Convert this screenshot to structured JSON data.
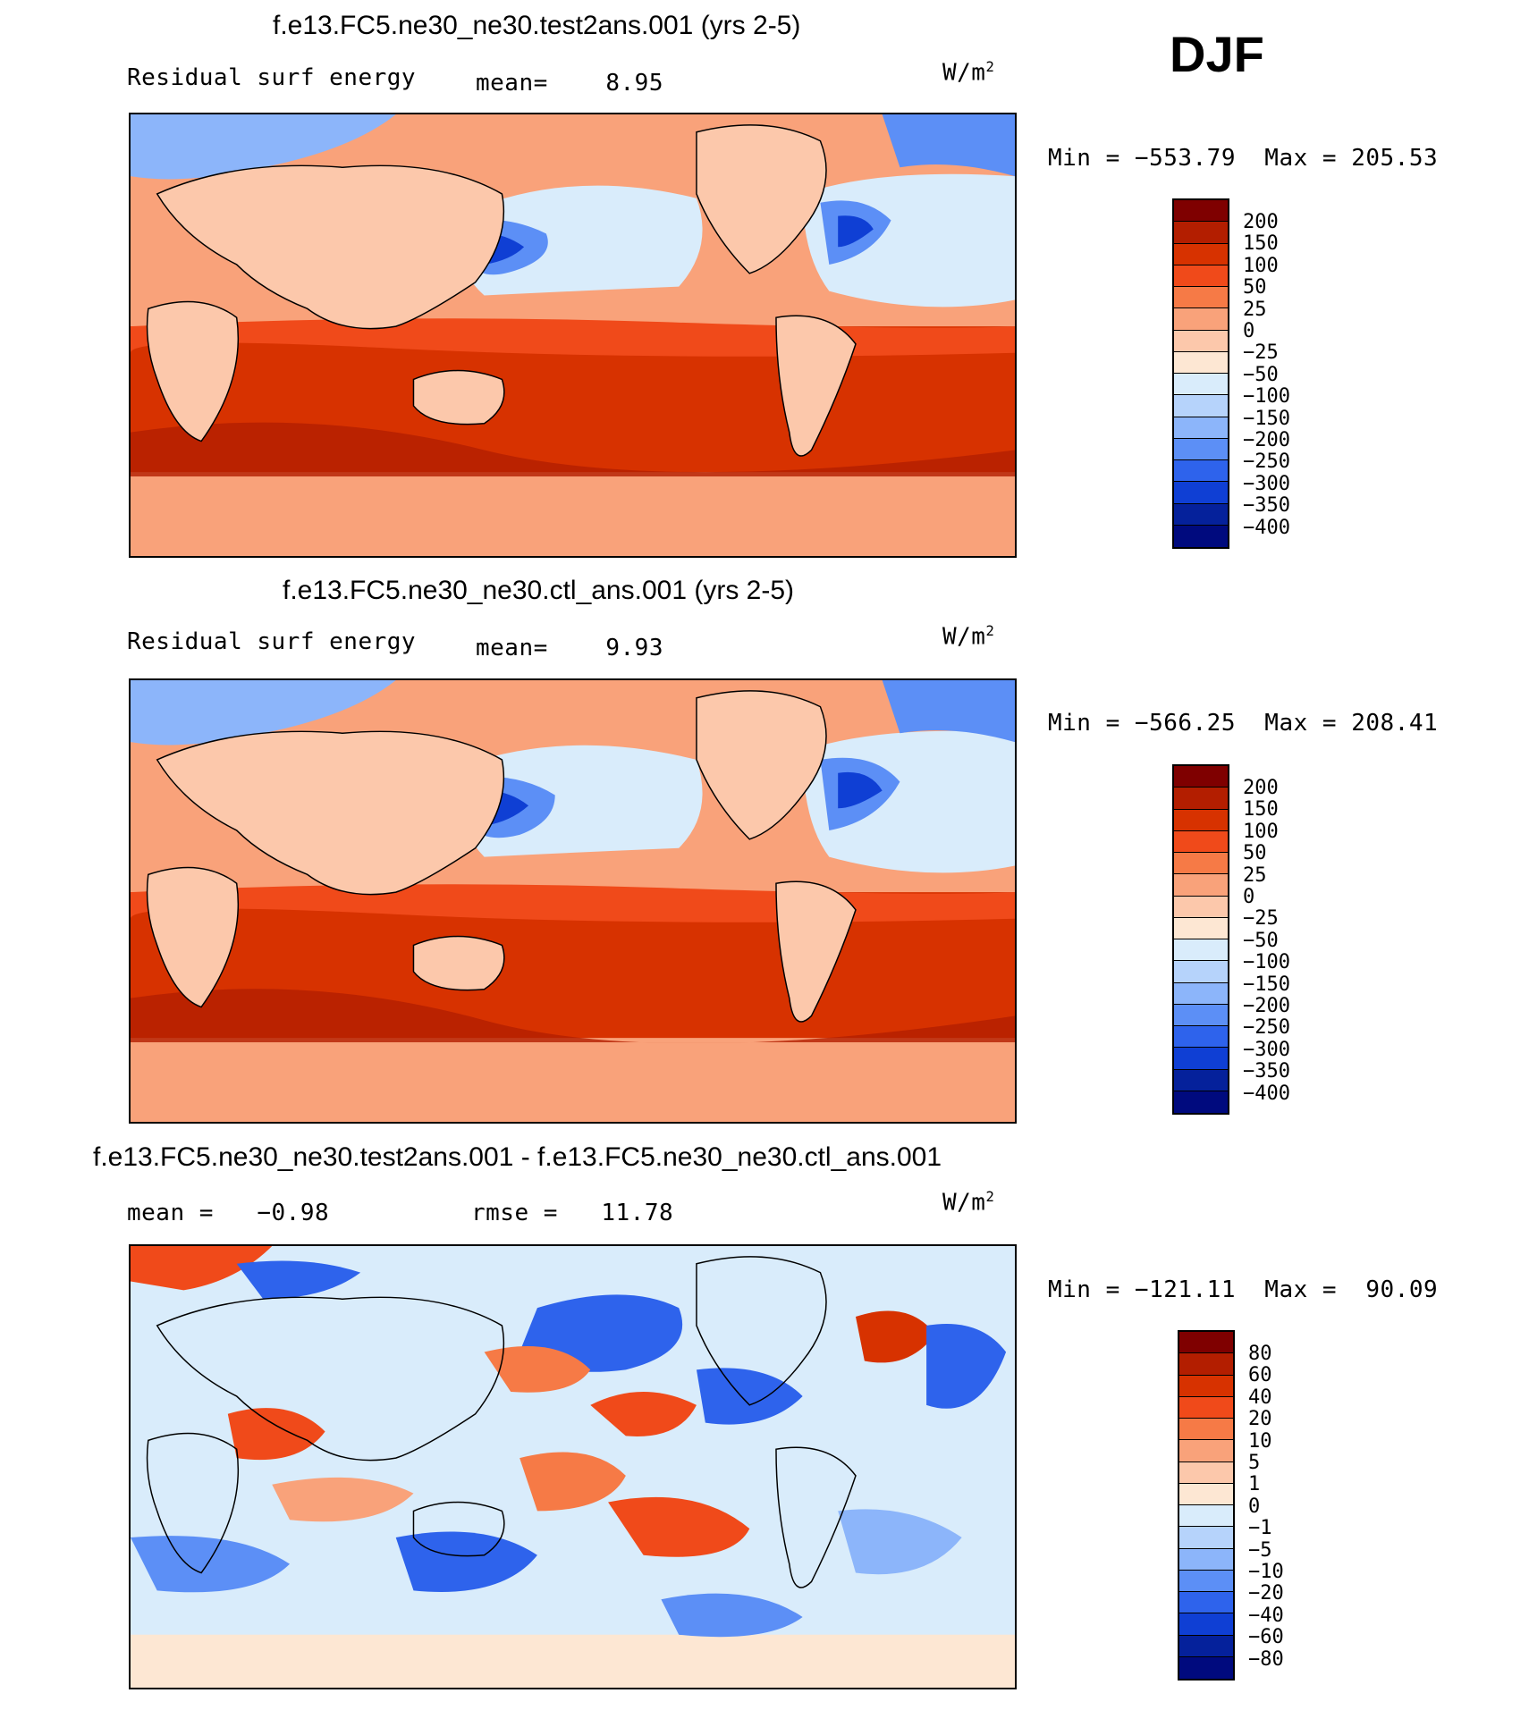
{
  "season": "DJF",
  "panels": [
    {
      "title": "f.e13.FC5.ne30_ne30.test2ans.001 (yrs 2-5)",
      "left_label": "Residual surf energy",
      "center_label": "mean=    8.95",
      "units": "W/m",
      "units_sup": "2",
      "minmax": "Min = −553.79  Max = 205.53",
      "levels": [
        "200",
        "150",
        "100",
        "50",
        "25",
        "0",
        "−25",
        "−50",
        "−100",
        "−150",
        "−200",
        "−250",
        "−300",
        "−350",
        "−400"
      ],
      "colors": [
        "#7f0000",
        "#b31e00",
        "#d73200",
        "#f04a1a",
        "#f67a46",
        "#f9a27a",
        "#fcc8ab",
        "#fde7d3",
        "#d9ecfb",
        "#b6d3fb",
        "#8cb5fa",
        "#5c8ff6",
        "#2e63ec",
        "#0f3fd4",
        "#05219b",
        "#000a7e"
      ]
    },
    {
      "title": "f.e13.FC5.ne30_ne30.ctl_ans.001 (yrs 2-5)",
      "left_label": "Residual surf energy",
      "center_label": "mean=    9.93",
      "units": "W/m",
      "units_sup": "2",
      "minmax": "Min = −566.25  Max = 208.41",
      "levels": [
        "200",
        "150",
        "100",
        "50",
        "25",
        "0",
        "−25",
        "−50",
        "−100",
        "−150",
        "−200",
        "−250",
        "−300",
        "−350",
        "−400"
      ],
      "colors": [
        "#7f0000",
        "#b31e00",
        "#d73200",
        "#f04a1a",
        "#f67a46",
        "#f9a27a",
        "#fcc8ab",
        "#fde7d3",
        "#d9ecfb",
        "#b6d3fb",
        "#8cb5fa",
        "#5c8ff6",
        "#2e63ec",
        "#0f3fd4",
        "#05219b",
        "#000a7e"
      ]
    },
    {
      "title": "f.e13.FC5.ne30_ne30.test2ans.001 - f.e13.FC5.ne30_ne30.ctl_ans.001",
      "left_label": "mean =   −0.98",
      "center_label": "rmse =   11.78",
      "units": "W/m",
      "units_sup": "2",
      "minmax": "Min = −121.11  Max =  90.09",
      "levels": [
        "80",
        "60",
        "40",
        "20",
        "10",
        "5",
        "1",
        "0",
        "−1",
        "−5",
        "−10",
        "−20",
        "−40",
        "−60",
        "−80"
      ],
      "colors": [
        "#7f0000",
        "#b31e00",
        "#d73200",
        "#f04a1a",
        "#f67a46",
        "#f9a27a",
        "#fcc8ab",
        "#fde7d3",
        "#d9ecfb",
        "#b6d3fb",
        "#8cb5fa",
        "#5c8ff6",
        "#2e63ec",
        "#0f3fd4",
        "#05219b",
        "#000a7e"
      ]
    }
  ]
}
